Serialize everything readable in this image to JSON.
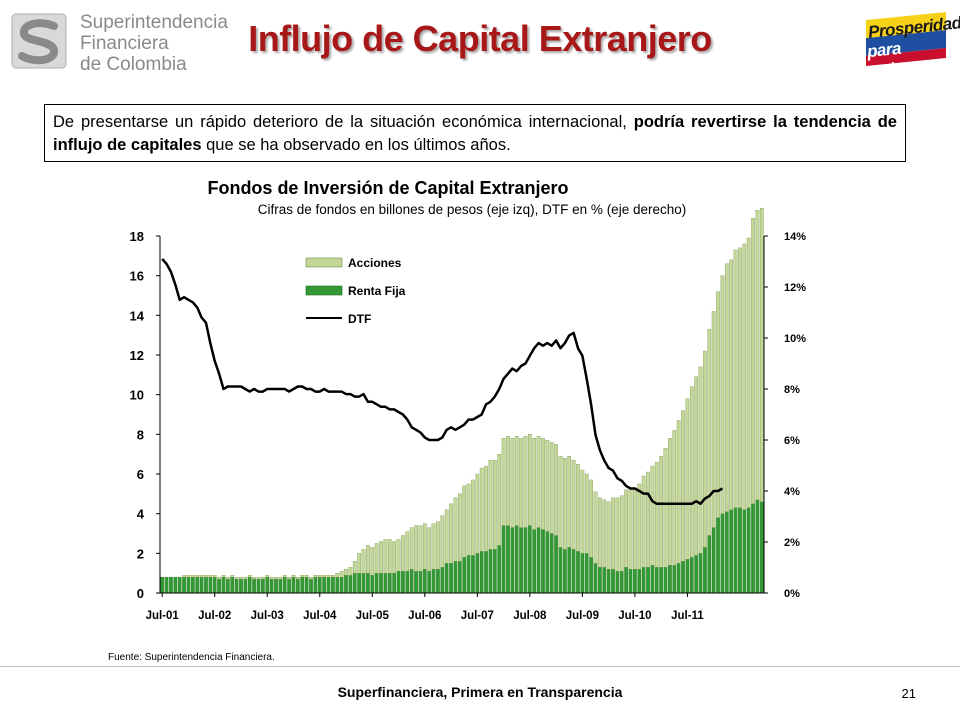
{
  "header": {
    "org_line1": "Superintendencia",
    "org_line2": "Financiera",
    "org_line3": "de Colombia",
    "title": "Influjo de Capital Extranjero",
    "brand_line1": "Prosperidad",
    "brand_line2": "para todos"
  },
  "intro": {
    "part1": "De presentarse un rápido deterioro de la situación económica internacional, ",
    "bold": "podría revertirse la tendencia de influjo de capitales",
    "part2": " que se ha observado en los últimos años."
  },
  "chart_data": {
    "type": "bar",
    "title": "Fondos de Inversión de Capital Extranjero",
    "subtitle": "Cifras de fondos en billones de pesos (eje izq), DTF en % (eje derecho)",
    "xlabel": "",
    "ylabel": "",
    "ylim": [
      0,
      18
    ],
    "y2lim": [
      0,
      14
    ],
    "yticks": [
      "0",
      "2",
      "4",
      "6",
      "8",
      "10",
      "12",
      "14",
      "16",
      "18"
    ],
    "y2ticks": [
      "0%",
      "2%",
      "4%",
      "6%",
      "8%",
      "10%",
      "12%",
      "14%"
    ],
    "xticks": [
      "Jul-01",
      "Jul-02",
      "Jul-03",
      "Jul-04",
      "Jul-05",
      "Jul-06",
      "Jul-07",
      "Jul-08",
      "Jul-09",
      "Jul-10",
      "Jul-11"
    ],
    "stacked": true,
    "legend": "top-left",
    "source": "Fuente: Superintendencia Financiera.",
    "colors": {
      "acciones": "#c4d79b",
      "renta_fija": "#339933",
      "dtf": "#000000"
    },
    "series": [
      {
        "name": "Acciones",
        "kind": "bar",
        "values": [
          0.0,
          0.0,
          0.0,
          0.0,
          0.0,
          0.1,
          0.1,
          0.1,
          0.1,
          0.1,
          0.1,
          0.1,
          0.1,
          0.1,
          0.1,
          0.1,
          0.1,
          0.1,
          0.1,
          0.1,
          0.1,
          0.1,
          0.1,
          0.1,
          0.1,
          0.1,
          0.1,
          0.1,
          0.1,
          0.1,
          0.1,
          0.1,
          0.1,
          0.1,
          0.1,
          0.1,
          0.1,
          0.1,
          0.1,
          0.1,
          0.2,
          0.3,
          0.3,
          0.4,
          0.6,
          1.0,
          1.2,
          1.4,
          1.4,
          1.5,
          1.6,
          1.7,
          1.7,
          1.6,
          1.6,
          1.8,
          2.0,
          2.1,
          2.3,
          2.3,
          2.3,
          2.2,
          2.3,
          2.4,
          2.6,
          2.7,
          3.0,
          3.2,
          3.4,
          3.6,
          3.6,
          3.8,
          4.0,
          4.2,
          4.3,
          4.5,
          4.5,
          4.6,
          4.4,
          4.5,
          4.5,
          4.5,
          4.5,
          4.6,
          4.6,
          4.6,
          4.6,
          4.6,
          4.6,
          4.6,
          4.6,
          4.6,
          4.6,
          4.6,
          4.5,
          4.4,
          4.2,
          4.0,
          3.9,
          3.6,
          3.5,
          3.4,
          3.4,
          3.6,
          3.7,
          3.8,
          3.9,
          4.0,
          4.1,
          4.3,
          4.6,
          4.8,
          5.0,
          5.3,
          5.6,
          6.0,
          6.4,
          6.8,
          7.2,
          7.6,
          8.1,
          8.6,
          9.0,
          9.4,
          9.9,
          10.4,
          10.9,
          11.4,
          12.0,
          12.5,
          12.6,
          13.0,
          13.1,
          13.4,
          13.6,
          14.4,
          14.6,
          14.8
        ]
      },
      {
        "name": "Renta Fija",
        "kind": "bar",
        "values": [
          0.8,
          0.8,
          0.8,
          0.8,
          0.8,
          0.8,
          0.8,
          0.8,
          0.8,
          0.8,
          0.8,
          0.8,
          0.8,
          0.7,
          0.8,
          0.7,
          0.8,
          0.7,
          0.7,
          0.7,
          0.8,
          0.7,
          0.7,
          0.7,
          0.8,
          0.7,
          0.7,
          0.7,
          0.8,
          0.7,
          0.8,
          0.7,
          0.8,
          0.8,
          0.7,
          0.8,
          0.8,
          0.8,
          0.8,
          0.8,
          0.8,
          0.8,
          0.9,
          0.9,
          1.0,
          1.0,
          1.0,
          1.0,
          0.9,
          1.0,
          1.0,
          1.0,
          1.0,
          1.0,
          1.1,
          1.1,
          1.1,
          1.2,
          1.1,
          1.1,
          1.2,
          1.1,
          1.2,
          1.2,
          1.3,
          1.5,
          1.5,
          1.6,
          1.6,
          1.8,
          1.9,
          1.9,
          2.0,
          2.1,
          2.1,
          2.2,
          2.2,
          2.4,
          3.4,
          3.4,
          3.3,
          3.4,
          3.3,
          3.3,
          3.4,
          3.2,
          3.3,
          3.2,
          3.1,
          3.0,
          2.9,
          2.3,
          2.2,
          2.3,
          2.2,
          2.1,
          2.0,
          2.0,
          1.8,
          1.5,
          1.3,
          1.3,
          1.2,
          1.2,
          1.1,
          1.1,
          1.3,
          1.2,
          1.2,
          1.2,
          1.3,
          1.3,
          1.4,
          1.3,
          1.3,
          1.3,
          1.4,
          1.4,
          1.5,
          1.6,
          1.7,
          1.8,
          1.9,
          2.0,
          2.3,
          2.9,
          3.3,
          3.8,
          4.0,
          4.1,
          4.2,
          4.3,
          4.3,
          4.2,
          4.3,
          4.5,
          4.7,
          4.6
        ]
      },
      {
        "name": "DTF",
        "kind": "line",
        "axis": "right",
        "values": [
          13.1,
          12.9,
          12.6,
          12.1,
          11.5,
          11.6,
          11.5,
          11.4,
          11.2,
          10.8,
          10.6,
          9.8,
          9.1,
          8.6,
          8.0,
          8.1,
          8.1,
          8.1,
          8.1,
          8.0,
          7.9,
          8.0,
          7.9,
          7.9,
          8.0,
          8.0,
          8.0,
          8.0,
          8.0,
          7.9,
          8.0,
          8.1,
          8.1,
          8.0,
          8.0,
          7.9,
          7.9,
          8.0,
          7.9,
          7.9,
          7.9,
          7.9,
          7.8,
          7.8,
          7.7,
          7.7,
          7.8,
          7.5,
          7.5,
          7.4,
          7.3,
          7.3,
          7.2,
          7.2,
          7.1,
          7.0,
          6.8,
          6.5,
          6.4,
          6.3,
          6.1,
          6.0,
          6.0,
          6.0,
          6.1,
          6.4,
          6.5,
          6.4,
          6.5,
          6.6,
          6.8,
          6.8,
          6.9,
          7.0,
          7.4,
          7.5,
          7.7,
          8.0,
          8.4,
          8.6,
          8.8,
          8.7,
          8.9,
          9.0,
          9.3,
          9.6,
          9.8,
          9.7,
          9.8,
          9.7,
          9.9,
          9.6,
          9.8,
          10.1,
          10.2,
          9.6,
          9.3,
          8.4,
          7.4,
          6.2,
          5.6,
          5.2,
          4.9,
          4.8,
          4.5,
          4.4,
          4.2,
          4.1,
          4.1,
          4.0,
          3.9,
          3.9,
          3.6,
          3.5,
          3.5,
          3.5,
          3.5,
          3.5,
          3.5,
          3.5,
          3.5,
          3.5,
          3.6,
          3.5,
          3.7,
          3.8,
          4.0,
          4.0,
          4.1
        ]
      }
    ]
  },
  "footer": {
    "tagline": "Superfinanciera, Primera en Transparencia",
    "page": "21"
  }
}
